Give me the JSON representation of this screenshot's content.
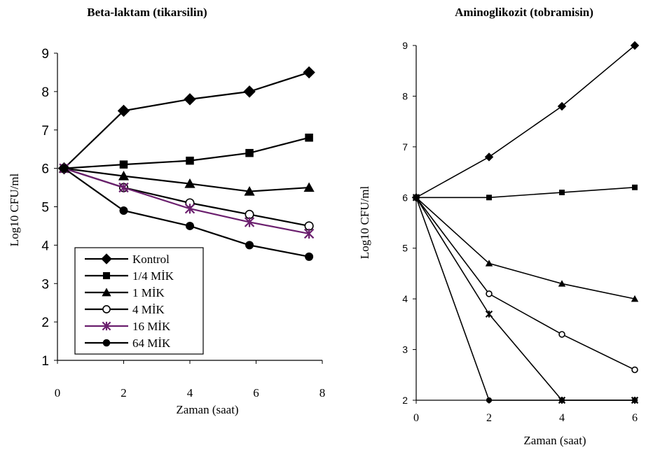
{
  "chart_data": [
    {
      "type": "line",
      "title": "Beta-laktam (tikarsilin)",
      "xlabel": "Zaman (saat)",
      "ylabel": "Log10 CFU/ml",
      "xlim": [
        0,
        8
      ],
      "ylim": [
        1,
        9
      ],
      "x_ticks": [
        "0",
        "2",
        "4",
        "6",
        "8"
      ],
      "y_ticks": [
        "1",
        "2",
        "3",
        "4",
        "5",
        "6",
        "7",
        "8",
        "9"
      ],
      "legend_position": "bottom-left",
      "x": [
        0.2,
        2.0,
        4.0,
        5.8,
        7.6
      ],
      "series": [
        {
          "name": "Kontrol",
          "marker": "diamond",
          "color": "#000000",
          "values": [
            6.0,
            7.5,
            7.8,
            8.0,
            8.5
          ]
        },
        {
          "name": "1/4 MİK",
          "marker": "square",
          "color": "#000000",
          "values": [
            6.0,
            6.1,
            6.2,
            6.4,
            6.8
          ]
        },
        {
          "name": "1 MİK",
          "marker": "triangle",
          "color": "#000000",
          "values": [
            6.0,
            5.8,
            5.6,
            5.4,
            5.5
          ]
        },
        {
          "name": "4 MİK",
          "marker": "circle-open",
          "color": "#000000",
          "values": [
            6.0,
            5.5,
            5.1,
            4.8,
            4.5
          ]
        },
        {
          "name": "16 MİK",
          "marker": "star",
          "color": "#6b1f6e",
          "values": [
            6.0,
            5.5,
            4.95,
            4.6,
            4.3
          ]
        },
        {
          "name": "64 MİK",
          "marker": "circle",
          "color": "#000000",
          "values": [
            6.0,
            4.9,
            4.5,
            4.0,
            3.7
          ]
        }
      ]
    },
    {
      "type": "line",
      "title": "Aminoglikozit (tobramisin)",
      "xlabel": "Zaman (saat)",
      "ylabel": "Log10 CFU/ml",
      "xlim": [
        0,
        6
      ],
      "ylim": [
        2,
        9
      ],
      "x_ticks": [
        "0",
        "2",
        "4",
        "6"
      ],
      "y_ticks": [
        "2",
        "3",
        "4",
        "5",
        "6",
        "7",
        "8",
        "9"
      ],
      "x": [
        0,
        2,
        4,
        6
      ],
      "series": [
        {
          "name": "Kontrol",
          "marker": "diamond",
          "color": "#000000",
          "values": [
            6.0,
            6.8,
            7.8,
            9.0
          ]
        },
        {
          "name": "1/4 MİK",
          "marker": "square",
          "color": "#000000",
          "values": [
            6.0,
            6.0,
            6.1,
            6.2
          ]
        },
        {
          "name": "1 MİK",
          "marker": "triangle",
          "color": "#000000",
          "values": [
            6.0,
            4.7,
            4.3,
            4.0
          ]
        },
        {
          "name": "4 MİK",
          "marker": "circle-open",
          "color": "#000000",
          "values": [
            6.0,
            4.1,
            3.3,
            2.6
          ]
        },
        {
          "name": "16 MİK",
          "marker": "star",
          "color": "#000000",
          "values": [
            6.0,
            3.7,
            2.0,
            2.0
          ]
        },
        {
          "name": "64 MİK",
          "marker": "circle",
          "color": "#000000",
          "values": [
            6.0,
            2.0,
            2.0,
            2.0
          ]
        }
      ]
    }
  ]
}
